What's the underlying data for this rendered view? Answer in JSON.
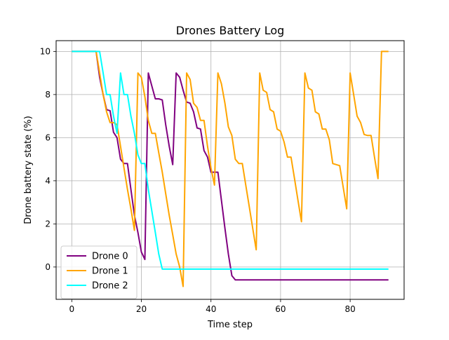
{
  "chart_data": {
    "type": "line",
    "title": "Drones Battery Log",
    "xlabel": "Time step",
    "ylabel": "Drone battery state (%)",
    "xlim": [
      -4.5,
      95.5
    ],
    "ylim": [
      -1.5,
      10.5
    ],
    "xticks": [
      0,
      20,
      40,
      60,
      80
    ],
    "yticks": [
      0,
      2,
      4,
      6,
      8,
      10
    ],
    "grid": true,
    "legend_position": "lower-left",
    "series": [
      {
        "name": "Drone 0",
        "color": "#800080",
        "points": [
          [
            0,
            10
          ],
          [
            7,
            10
          ],
          [
            8,
            8.8
          ],
          [
            9,
            8.0
          ],
          [
            10,
            7.3
          ],
          [
            11,
            7.25
          ],
          [
            12,
            6.25
          ],
          [
            13,
            6.0
          ],
          [
            14,
            5.0
          ],
          [
            15,
            4.8
          ],
          [
            16,
            4.8
          ],
          [
            17,
            3.6
          ],
          [
            18,
            2.4
          ],
          [
            19,
            1.6
          ],
          [
            20,
            0.7
          ],
          [
            21,
            0.35
          ],
          [
            22,
            9.0
          ],
          [
            23,
            8.4
          ],
          [
            24,
            7.8
          ],
          [
            25,
            7.8
          ],
          [
            26,
            7.75
          ],
          [
            27,
            6.6
          ],
          [
            28,
            5.6
          ],
          [
            29,
            4.75
          ],
          [
            30,
            9.0
          ],
          [
            31,
            8.8
          ],
          [
            32,
            8.2
          ],
          [
            33,
            7.65
          ],
          [
            34,
            7.6
          ],
          [
            35,
            7.2
          ],
          [
            36,
            6.45
          ],
          [
            37,
            6.4
          ],
          [
            38,
            5.4
          ],
          [
            39,
            5.1
          ],
          [
            40,
            4.4
          ],
          [
            41,
            4.4
          ],
          [
            42,
            4.4
          ],
          [
            43,
            3.1
          ],
          [
            44,
            1.8
          ],
          [
            45,
            0.6
          ],
          [
            46,
            -0.4
          ],
          [
            47,
            -0.6
          ],
          [
            91,
            -0.6
          ]
        ]
      },
      {
        "name": "Drone 1",
        "color": "#FFA500",
        "points": [
          [
            0,
            10
          ],
          [
            7,
            10
          ],
          [
            8,
            9.0
          ],
          [
            9,
            8.0
          ],
          [
            10,
            7.2
          ],
          [
            11,
            6.7
          ],
          [
            12,
            6.7
          ],
          [
            13,
            6.6
          ],
          [
            14,
            5.6
          ],
          [
            15,
            4.6
          ],
          [
            16,
            3.6
          ],
          [
            17,
            2.7
          ],
          [
            18,
            1.7
          ],
          [
            19,
            9.0
          ],
          [
            20,
            8.8
          ],
          [
            21,
            7.9
          ],
          [
            22,
            6.8
          ],
          [
            23,
            6.2
          ],
          [
            24,
            6.2
          ],
          [
            25,
            5.3
          ],
          [
            26,
            4.4
          ],
          [
            27,
            3.4
          ],
          [
            28,
            2.4
          ],
          [
            29,
            1.5
          ],
          [
            30,
            0.6
          ],
          [
            31,
            0.0
          ],
          [
            32,
            -0.9
          ],
          [
            33,
            9.0
          ],
          [
            34,
            8.7
          ],
          [
            35,
            7.6
          ],
          [
            36,
            7.4
          ],
          [
            37,
            6.8
          ],
          [
            38,
            6.8
          ],
          [
            39,
            5.6
          ],
          [
            40,
            4.6
          ],
          [
            41,
            3.8
          ],
          [
            42,
            9.0
          ],
          [
            43,
            8.5
          ],
          [
            44,
            7.6
          ],
          [
            45,
            6.5
          ],
          [
            46,
            6.1
          ],
          [
            47,
            5.0
          ],
          [
            48,
            4.8
          ],
          [
            49,
            4.8
          ],
          [
            50,
            3.8
          ],
          [
            51,
            2.8
          ],
          [
            52,
            1.8
          ],
          [
            53,
            0.8
          ],
          [
            54,
            9.0
          ],
          [
            55,
            8.2
          ],
          [
            56,
            8.1
          ],
          [
            57,
            7.3
          ],
          [
            58,
            7.2
          ],
          [
            59,
            6.4
          ],
          [
            60,
            6.3
          ],
          [
            61,
            5.8
          ],
          [
            62,
            5.1
          ],
          [
            63,
            5.1
          ],
          [
            64,
            4.1
          ],
          [
            65,
            3.1
          ],
          [
            66,
            2.1
          ],
          [
            67,
            9.0
          ],
          [
            68,
            8.3
          ],
          [
            69,
            8.2
          ],
          [
            70,
            7.2
          ],
          [
            71,
            7.1
          ],
          [
            72,
            6.4
          ],
          [
            73,
            6.4
          ],
          [
            74,
            5.9
          ],
          [
            75,
            4.8
          ],
          [
            76,
            4.75
          ],
          [
            77,
            4.7
          ],
          [
            78,
            3.7
          ],
          [
            79,
            2.7
          ],
          [
            80,
            9.0
          ],
          [
            81,
            8.0
          ],
          [
            82,
            7.0
          ],
          [
            83,
            6.7
          ],
          [
            84,
            6.15
          ],
          [
            85,
            6.1
          ],
          [
            86,
            6.1
          ],
          [
            87,
            5.1
          ],
          [
            88,
            4.1
          ],
          [
            89,
            10.0
          ],
          [
            91,
            10.0
          ]
        ]
      },
      {
        "name": "Drone 2",
        "color": "#00FFFF",
        "points": [
          [
            0,
            10
          ],
          [
            8,
            10
          ],
          [
            9,
            9.0
          ],
          [
            10,
            8.0
          ],
          [
            11,
            8.0
          ],
          [
            12,
            7.0
          ],
          [
            13,
            6.2
          ],
          [
            14,
            9.0
          ],
          [
            15,
            8.0
          ],
          [
            16,
            8.0
          ],
          [
            17,
            7.0
          ],
          [
            18,
            6.2
          ],
          [
            19,
            5.2
          ],
          [
            20,
            4.8
          ],
          [
            21,
            4.8
          ],
          [
            22,
            3.6
          ],
          [
            23,
            2.6
          ],
          [
            24,
            1.6
          ],
          [
            25,
            0.6
          ],
          [
            26,
            -0.1
          ],
          [
            91,
            -0.1
          ]
        ]
      }
    ]
  }
}
